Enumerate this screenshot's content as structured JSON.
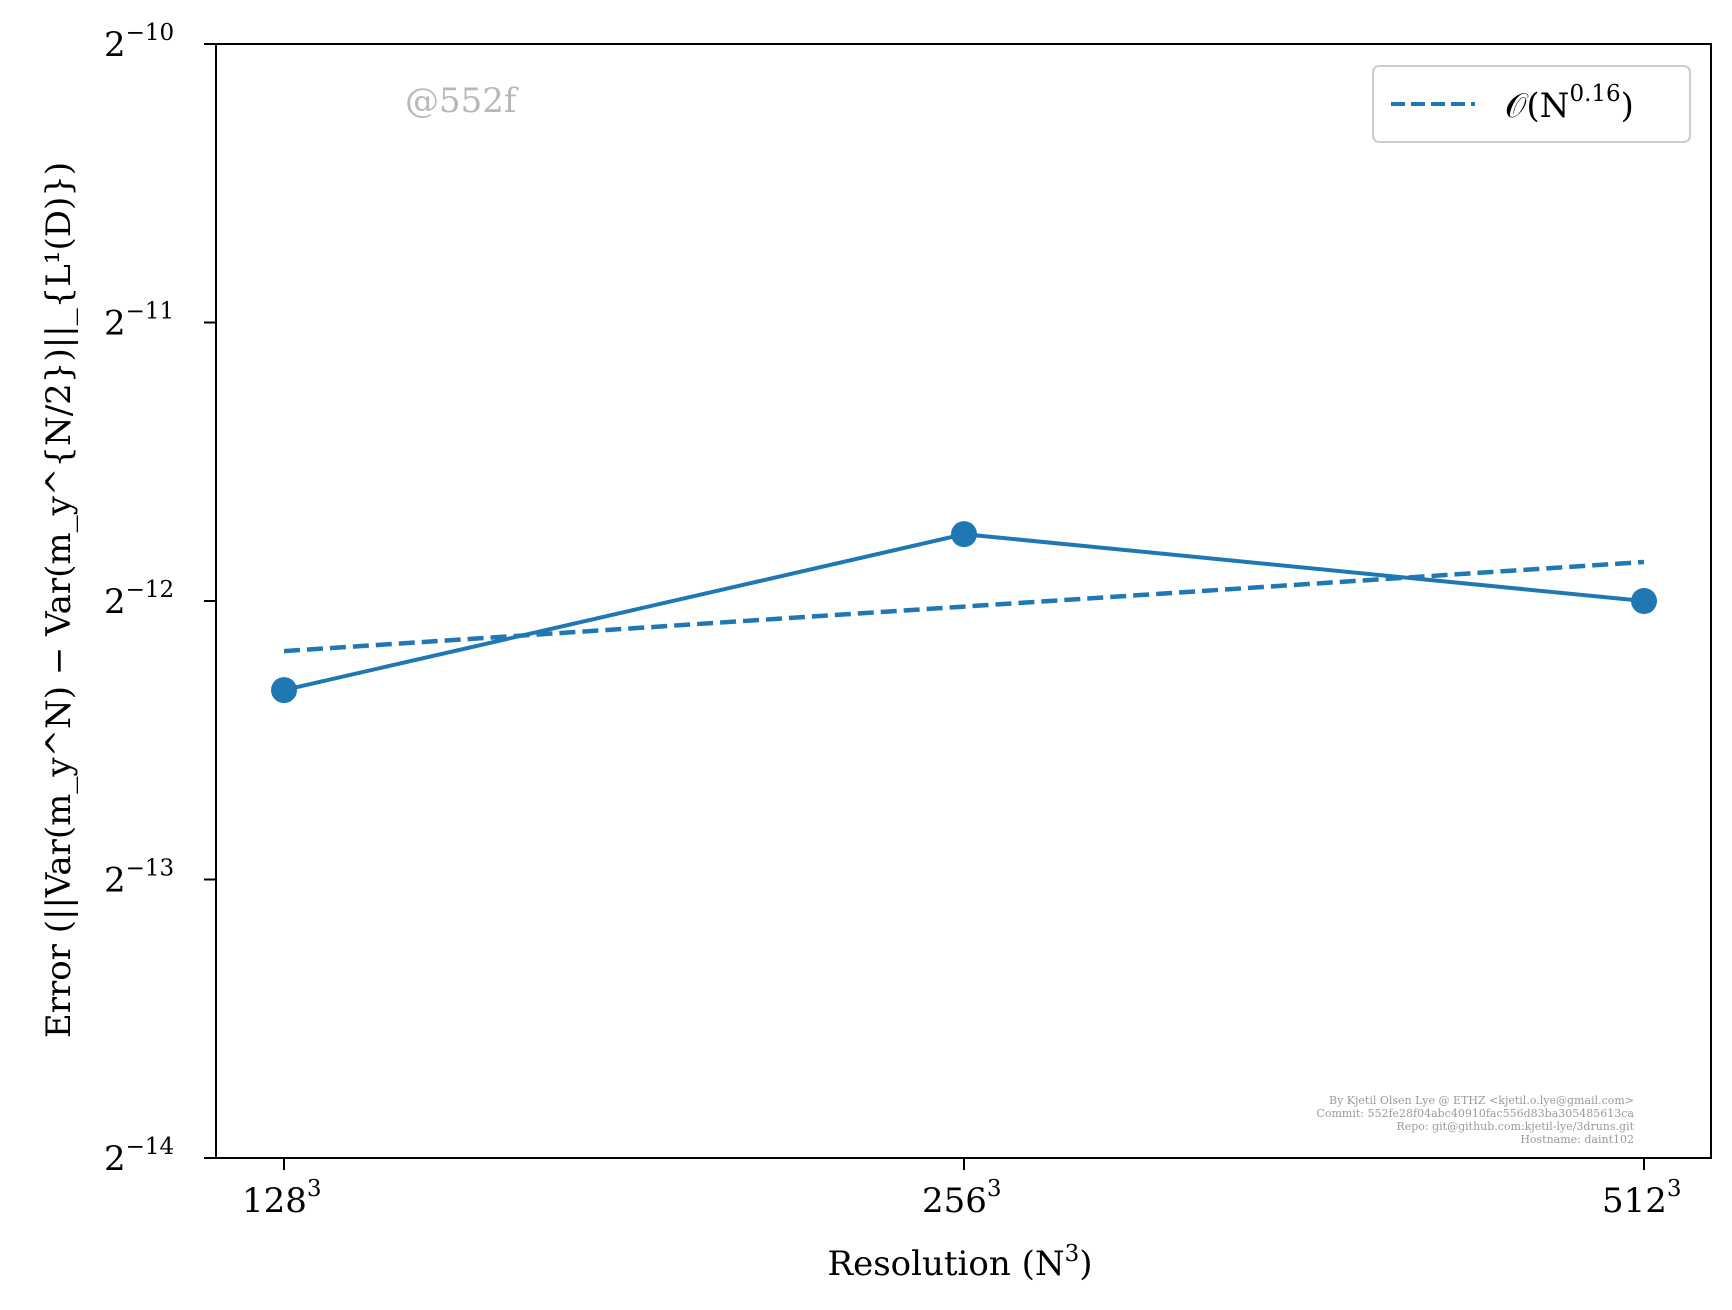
{
  "chart_data": {
    "type": "line",
    "xlabel": "Resolution (N³)",
    "xlabel_parts": {
      "text": "Resolution (N",
      "sup": "3",
      "close": ")"
    },
    "ylabel": "Error (||Var(m_y^N) − Var(m_y^{N/2})||_{L¹(D)})",
    "x_scale": "log2",
    "y_scale": "log2",
    "x_ticks": [
      {
        "value": 128,
        "base": "128",
        "sup": "3"
      },
      {
        "value": 256,
        "base": "256",
        "sup": "3"
      },
      {
        "value": 512,
        "base": "512",
        "sup": "3"
      }
    ],
    "y_ticks": [
      {
        "exp": -14,
        "base": "2",
        "sup": "−14"
      },
      {
        "exp": -13,
        "base": "2",
        "sup": "−13"
      },
      {
        "exp": -12,
        "base": "2",
        "sup": "−12"
      },
      {
        "exp": -11,
        "base": "2",
        "sup": "−11"
      },
      {
        "exp": -10,
        "base": "2",
        "sup": "−10"
      }
    ],
    "ylim_exp": [
      -14,
      -10
    ],
    "grid": false,
    "legend_position": "top-right",
    "color": "#1f77b4",
    "series": [
      {
        "style": "solid-with-markers",
        "x": [
          128,
          256,
          512
        ],
        "y_exp": [
          -12.32,
          -11.76,
          -12.0
        ]
      },
      {
        "name": "O(N^0.16)",
        "legend": {
          "prefix": "𝒪(N",
          "sup": "0.16",
          "suffix": ")"
        },
        "style": "dashed",
        "x": [
          128,
          256,
          512
        ],
        "y_exp": [
          -12.18,
          -12.02,
          -11.86
        ]
      }
    ],
    "watermark": "@552f",
    "credits": [
      "By Kjetil Olsen Lye @ ETHZ <kjetil.o.lye@gmail.com>",
      "Commit: 552fe28f04abc40910fac556d83ba305485613ca",
      "Repo: git@github.com:kjetil-lye/3druns.git",
      "Hostname: daint102"
    ]
  }
}
